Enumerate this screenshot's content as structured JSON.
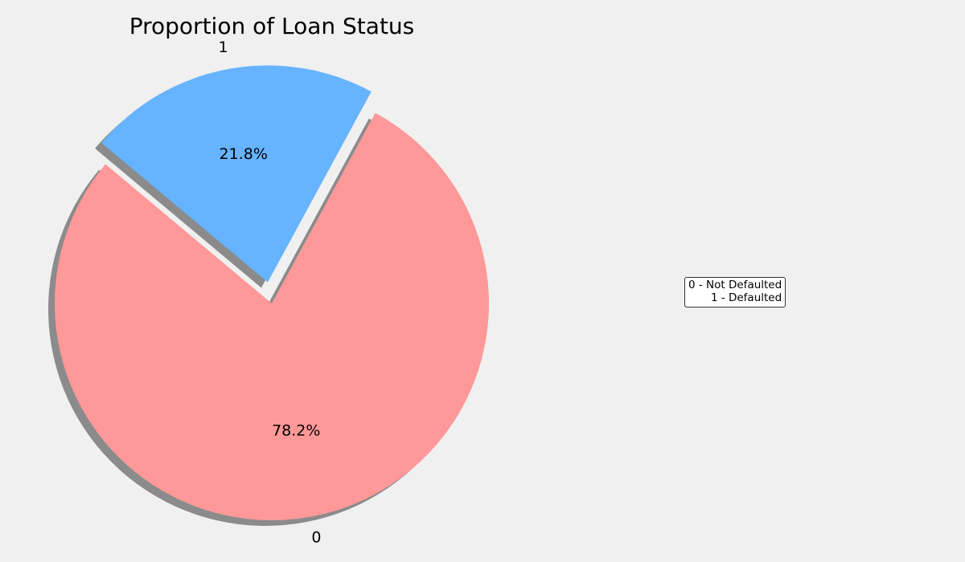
{
  "chart_data": {
    "type": "pie",
    "title": "Proportion of Loan Status",
    "slices": [
      {
        "label": "0",
        "value": 78.2,
        "pct_label": "78.2%",
        "color": "#ff9999",
        "exploded": false
      },
      {
        "label": "1",
        "value": 21.8,
        "pct_label": "21.8%",
        "color": "#66b3ff",
        "exploded": true
      }
    ],
    "shadow": true,
    "annotation_lines": [
      "0 - Not Defaulted",
      "1 - Defaulted"
    ]
  }
}
